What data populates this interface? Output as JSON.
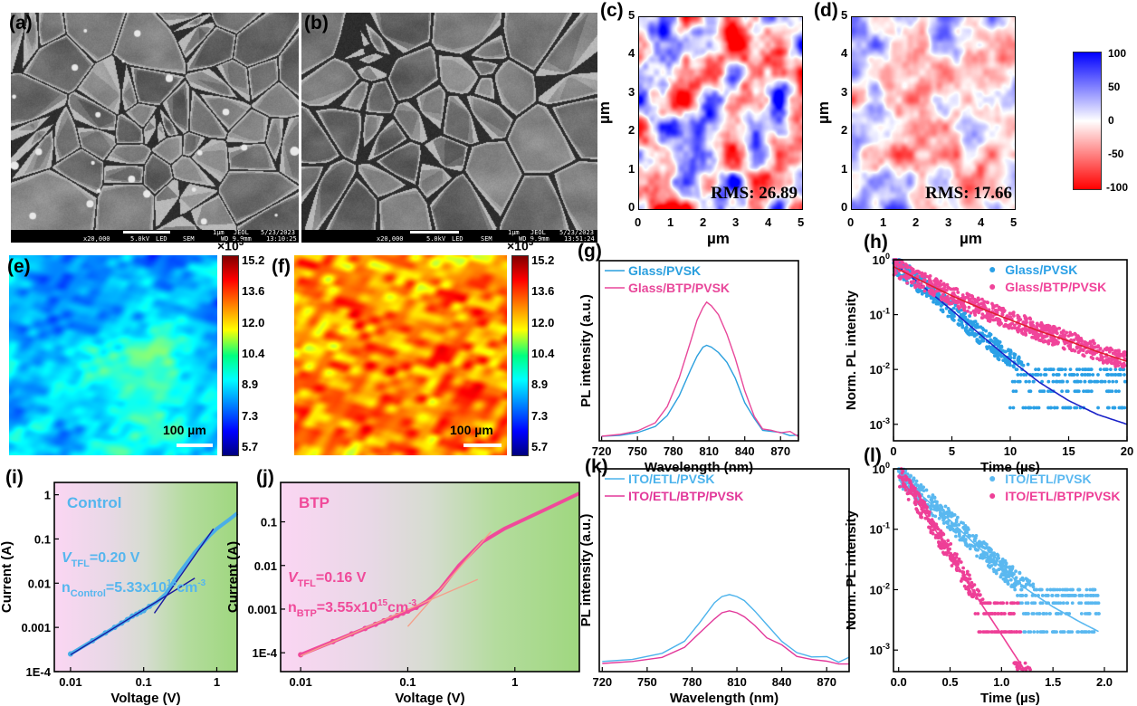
{
  "panels": {
    "a": "(a)",
    "b": "(b)",
    "c": "(c)",
    "d": "(d)",
    "e": "(e)",
    "f": "(f)",
    "g": "(g)",
    "h": "(h)",
    "i": "(i)",
    "j": "(j)",
    "k": "(k)",
    "l": "(l)"
  },
  "sem": [
    {
      "mag": "x20,000",
      "kv": "5.0kV",
      "det": "LED",
      "mode": "SEM",
      "scale": "1µm",
      "brand": "JEOL",
      "date": "5/23/2023",
      "wd": "WD 9.9mm",
      "time": "13:10:25"
    },
    {
      "mag": "x20,000",
      "kv": "5.0kV",
      "det": "LED",
      "mode": "SEM",
      "scale": "1µm",
      "brand": "JEOL",
      "date": "5/23/2023",
      "wd": "WD 9.9mm",
      "time": "13:51:24"
    }
  ],
  "afm": {
    "unit": "µm",
    "ticks": [
      "0",
      "1",
      "2",
      "3",
      "4",
      "5"
    ],
    "maps": [
      {
        "rms": "RMS: 26.89",
        "roughness_level": 1.0
      },
      {
        "rms": "RMS: 17.66",
        "roughness_level": 0.66
      }
    ],
    "colorbar": {
      "ticks": [
        "100",
        "50",
        "0",
        "-50",
        "-100"
      ],
      "top_color": "#0000ff",
      "mid_color": "#ffffff",
      "bottom_color": "#ff0000"
    }
  },
  "plmap": {
    "multiplier": "×10",
    "exponent": "3",
    "ticks": [
      "15.2",
      "13.6",
      "12.0",
      "10.4",
      "8.9",
      "7.3",
      "5.7"
    ],
    "scalebar": "100 µm",
    "maps": [
      {
        "level": "low (blue-cyan)"
      },
      {
        "level": "high (yellow-orange)"
      }
    ]
  },
  "chart_data": [
    {
      "panel": "g",
      "type": "line",
      "xlabel": "Wavelength (nm)",
      "ylabel": "PL intensity (a.u.)",
      "xscale": "linear",
      "yscale": "linear",
      "xlim": [
        718,
        885
      ],
      "ylim": [
        0,
        1
      ],
      "xticks": [
        {
          "v": 720,
          "label": "720"
        },
        {
          "v": 750,
          "label": "750"
        },
        {
          "v": 780,
          "label": "780"
        },
        {
          "v": 810,
          "label": "810"
        },
        {
          "v": 840,
          "label": "840"
        },
        {
          "v": 870,
          "label": "870"
        }
      ],
      "yticks": [],
      "legend": "top-left",
      "x": [
        720,
        735,
        750,
        765,
        775,
        785,
        795,
        800,
        805,
        808,
        812,
        818,
        825,
        832,
        840,
        848,
        855,
        862,
        870,
        878,
        885
      ],
      "series": [
        {
          "name": "Glass/PVSK",
          "color": "#2a9fde",
          "values": [
            0.025,
            0.03,
            0.045,
            0.08,
            0.14,
            0.25,
            0.4,
            0.47,
            0.52,
            0.53,
            0.52,
            0.49,
            0.43,
            0.34,
            0.22,
            0.12,
            0.07,
            0.05,
            0.04,
            0.03,
            0.02
          ]
        },
        {
          "name": "Glass/BTP/PVSK",
          "color": "#e8479a",
          "values": [
            0.025,
            0.035,
            0.055,
            0.1,
            0.19,
            0.35,
            0.56,
            0.67,
            0.74,
            0.77,
            0.75,
            0.7,
            0.6,
            0.45,
            0.27,
            0.13,
            0.08,
            0.06,
            0.05,
            0.04,
            0.03
          ]
        }
      ]
    },
    {
      "panel": "h",
      "type": "scatter",
      "xlabel": "Time (µs)",
      "ylabel": "Norm. PL intensity",
      "xscale": "linear",
      "yscale": "log",
      "xlim": [
        0,
        20
      ],
      "ylim": [
        0.0005,
        1
      ],
      "xticks": [
        {
          "v": 0,
          "label": "0"
        },
        {
          "v": 5,
          "label": "5"
        },
        {
          "v": 10,
          "label": "10"
        },
        {
          "v": 15,
          "label": "15"
        },
        {
          "v": 20,
          "label": "20"
        }
      ],
      "yticks": [
        {
          "v": 1,
          "base": "10",
          "exp": "0"
        },
        {
          "v": 0.1,
          "base": "10",
          "exp": "-1"
        },
        {
          "v": 0.01,
          "base": "10",
          "exp": "-2"
        },
        {
          "v": 0.001,
          "base": "10",
          "exp": "-3"
        }
      ],
      "legend": "top-right",
      "x": [
        0,
        2.5,
        5,
        7.5,
        10,
        12.5,
        15,
        17.5,
        20
      ],
      "series": [
        {
          "name": "Glass/PVSK",
          "color": "#2aa0e6",
          "fit_color": "#1a22c8",
          "values": [
            0.9,
            0.33,
            0.12,
            0.042,
            0.015,
            0.0058,
            0.0027,
            0.0015,
            0.001
          ],
          "floors": [
            0.002,
            0.004,
            0.006,
            0.008,
            0.01
          ]
        },
        {
          "name": "Glass/BTP/PVSK",
          "color": "#f0449a",
          "fit_color": "#e01e30",
          "values": [
            0.75,
            0.4,
            0.22,
            0.13,
            0.08,
            0.05,
            0.033,
            0.021,
            0.014
          ],
          "floors": [
            0.002,
            0.004,
            0.008,
            0.01
          ]
        }
      ]
    },
    {
      "panel": "i",
      "type": "line",
      "xlabel": "Voltage (V)",
      "ylabel": "Current (A)",
      "xscale": "log",
      "yscale": "log",
      "xlim": [
        0.006,
        1.9
      ],
      "ylim": [
        0.0001,
        1.9
      ],
      "xticks": [
        {
          "v": 0.01,
          "label": "0.01"
        },
        {
          "v": 0.1,
          "label": "0.1"
        },
        {
          "v": 1,
          "label": "1"
        }
      ],
      "yticks": [
        {
          "v": 0.0001,
          "label": "1E-4"
        },
        {
          "v": 0.001,
          "label": "0.001"
        },
        {
          "v": 0.01,
          "label": "0.01"
        },
        {
          "v": 0.1,
          "label": "0.1"
        },
        {
          "v": 1,
          "label": "1"
        }
      ],
      "x": [
        0.01,
        0.02,
        0.03,
        0.04,
        0.05,
        0.06,
        0.07,
        0.08,
        0.09,
        0.1,
        0.12,
        0.15,
        0.2,
        0.3,
        0.5,
        0.8,
        1,
        1.5,
        1.9
      ],
      "series": [
        {
          "name": "Control",
          "color": "#4aaee8",
          "values": [
            0.00025,
            0.0005,
            0.00075,
            0.001,
            0.00125,
            0.0015,
            0.0018,
            0.002,
            0.0022,
            0.0024,
            0.003,
            0.0037,
            0.0057,
            0.016,
            0.05,
            0.12,
            0.17,
            0.28,
            0.38
          ]
        }
      ],
      "fits": [
        {
          "color": "#1a1aa0",
          "points": [
            [
              0.01,
              0.00024
            ],
            [
              0.5,
              0.013
            ]
          ]
        },
        {
          "color": "#1a1aa0",
          "points": [
            [
              0.14,
              0.0021
            ],
            [
              0.9,
              0.17
            ]
          ]
        }
      ],
      "annotations": {
        "title": "Control",
        "color": "#55b6ee",
        "vtfl": {
          "v": "V",
          "sub": "TFL",
          "rest": "=0.20 V"
        },
        "n": {
          "n": "n",
          "sub": "Control",
          "rest": "=5.33x10",
          "sup": "15",
          "unit": "cm",
          "unitsup": "-3"
        }
      }
    },
    {
      "panel": "j",
      "type": "line",
      "xlabel": "Voltage (V)",
      "ylabel": "Current (A)",
      "xscale": "log",
      "yscale": "log",
      "xlim": [
        0.0065,
        4
      ],
      "ylim": [
        3.7e-05,
        0.8
      ],
      "xticks": [
        {
          "v": 0.01,
          "label": "0.01"
        },
        {
          "v": 0.1,
          "label": "0.1"
        },
        {
          "v": 1,
          "label": "1"
        }
      ],
      "yticks": [
        {
          "v": 0.0001,
          "label": "1E-4"
        },
        {
          "v": 0.001,
          "label": "0.001"
        },
        {
          "v": 0.01,
          "label": "0.01"
        },
        {
          "v": 0.1,
          "label": "0.1"
        }
      ],
      "x": [
        0.01,
        0.02,
        0.03,
        0.04,
        0.05,
        0.06,
        0.07,
        0.08,
        0.09,
        0.1,
        0.12,
        0.15,
        0.2,
        0.3,
        0.5,
        0.8,
        1,
        2,
        4
      ],
      "series": [
        {
          "name": "BTP",
          "color": "#f04a9a",
          "values": [
            9e-05,
            0.00018,
            0.00027,
            0.00036,
            0.00045,
            0.00054,
            0.00063,
            0.00072,
            0.00081,
            0.0009,
            0.0011,
            0.0015,
            0.0028,
            0.01,
            0.035,
            0.07,
            0.09,
            0.2,
            0.45
          ]
        }
      ],
      "fits": [
        {
          "color": "#f4a08a",
          "points": [
            [
              0.01,
              8.5e-05
            ],
            [
              0.45,
              0.0048
            ]
          ]
        },
        {
          "color": "#f4a08a",
          "points": [
            [
              0.1,
              0.0004
            ],
            [
              0.6,
              0.06
            ]
          ]
        }
      ],
      "annotations": {
        "title": "BTP",
        "color": "#f04a9a",
        "vtfl": {
          "v": "V",
          "sub": "TFL",
          "rest": "=0.16 V"
        },
        "n": {
          "n": "n",
          "sub": "BTP",
          "rest": "=3.55x10",
          "sup": "15",
          "unit": "cm",
          "unitsup": "-3"
        }
      }
    },
    {
      "panel": "k",
      "type": "line",
      "xlabel": "Wavelength (nm)",
      "ylabel": "PL intensity (a.u.)",
      "xscale": "linear",
      "yscale": "linear",
      "xlim": [
        718,
        885
      ],
      "ylim": [
        0,
        1
      ],
      "xticks": [
        {
          "v": 720,
          "label": "720"
        },
        {
          "v": 750,
          "label": "750"
        },
        {
          "v": 780,
          "label": "780"
        },
        {
          "v": 810,
          "label": "810"
        },
        {
          "v": 840,
          "label": "840"
        },
        {
          "v": 870,
          "label": "870"
        }
      ],
      "yticks": [],
      "legend": "top-left",
      "x": [
        720,
        740,
        760,
        775,
        785,
        795,
        800,
        805,
        810,
        815,
        822,
        830,
        840,
        850,
        860,
        870,
        878,
        885
      ],
      "series": [
        {
          "name": "ITO/ETL/PVSK",
          "color": "#4cb3ec",
          "values": [
            0.05,
            0.06,
            0.09,
            0.15,
            0.24,
            0.34,
            0.37,
            0.38,
            0.37,
            0.35,
            0.3,
            0.23,
            0.15,
            0.1,
            0.08,
            0.07,
            0.06,
            0.06
          ]
        },
        {
          "name": "ITO/ETL/BTP/PVSK",
          "color": "#e2389a",
          "values": [
            0.04,
            0.05,
            0.07,
            0.12,
            0.19,
            0.26,
            0.29,
            0.3,
            0.29,
            0.27,
            0.23,
            0.18,
            0.12,
            0.08,
            0.06,
            0.06,
            0.05,
            0.05
          ]
        }
      ]
    },
    {
      "panel": "l",
      "type": "scatter",
      "xlabel": "Time (µs)",
      "ylabel": "Norm. PL intensity",
      "xscale": "linear",
      "yscale": "log",
      "xlim": [
        -0.05,
        2.22
      ],
      "ylim": [
        0.00044,
        1
      ],
      "xticks": [
        {
          "v": 0,
          "label": "0.0"
        },
        {
          "v": 0.5,
          "label": "0.5"
        },
        {
          "v": 1,
          "label": "1.0"
        },
        {
          "v": 1.5,
          "label": "1.5"
        },
        {
          "v": 2,
          "label": "2.0"
        }
      ],
      "yticks": [
        {
          "v": 1,
          "base": "10",
          "exp": "0"
        },
        {
          "v": 0.1,
          "base": "10",
          "exp": "-1"
        },
        {
          "v": 0.01,
          "base": "10",
          "exp": "-2"
        },
        {
          "v": 0.001,
          "base": "10",
          "exp": "-3"
        }
      ],
      "legend": "top-right",
      "x": [
        0,
        0.25,
        0.5,
        0.75,
        1,
        1.25,
        1.5,
        1.75,
        1.95
      ],
      "series": [
        {
          "name": "ITO/ETL/PVSK",
          "color": "#5ab8f0",
          "fit_color": "#5ab8f0",
          "values": [
            0.8,
            0.33,
            0.14,
            0.055,
            0.023,
            0.01,
            0.0052,
            0.003,
            0.002
          ],
          "floors": [
            0.002,
            0.004,
            0.006,
            0.008,
            0.01
          ]
        },
        {
          "name": "ITO/ETL/BTP/PVSK",
          "color": "#ee3f97",
          "fit_color": "#ee3f97",
          "values": [
            0.8,
            0.19,
            0.04,
            0.008,
            0.0018,
            0.0004,
            null,
            null,
            null
          ],
          "floors": [
            0.002,
            0.004,
            0.006
          ]
        }
      ]
    }
  ]
}
